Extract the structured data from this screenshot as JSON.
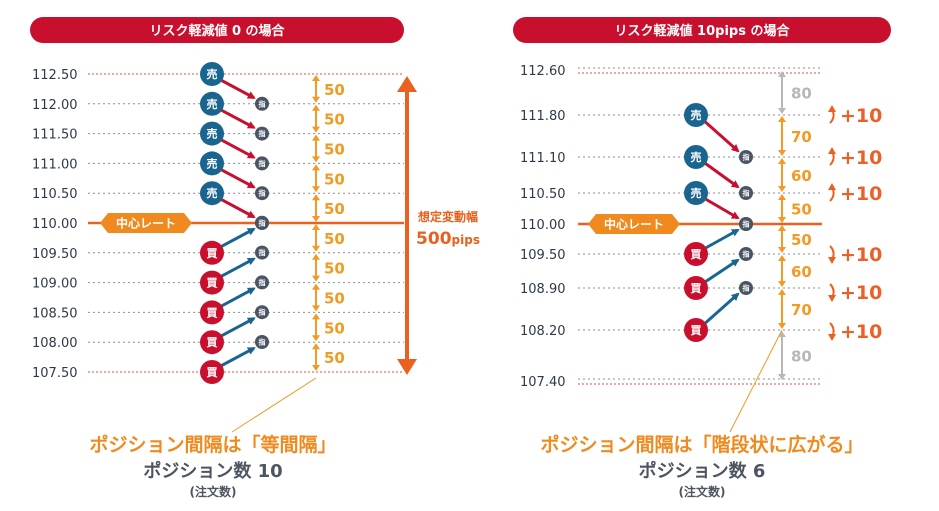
{
  "colors": {
    "banner": "#c8102e",
    "sell": "#1a6590",
    "buy": "#c8102e",
    "limit": "#4a5563",
    "step": "#f29a24",
    "step_gray": "#b7b7b7",
    "center": "#f08a1e",
    "range": "#e9601f",
    "sell_arrow": "#c8102e",
    "buy_arrow": "#1a6590"
  },
  "left": {
    "title": "リスク軽減値 0 の場合",
    "prices": [
      "112.50",
      "112.00",
      "111.50",
      "111.00",
      "110.50",
      "110.00",
      "109.50",
      "109.00",
      "108.50",
      "108.00",
      "107.50"
    ],
    "center_label": "中心レート",
    "sell_label": "売",
    "buy_label": "買",
    "limit_label": "指",
    "steps": [
      "50",
      "50",
      "50",
      "50",
      "50",
      "50",
      "50",
      "50",
      "50",
      "50"
    ],
    "range_label": "想定変動幅",
    "range_value": "500",
    "range_unit": "pips",
    "caption": "ポジション間隔は「等間隔」",
    "count": "ポジション数 10",
    "count_note": "(注文数)"
  },
  "right": {
    "title": "リスク軽減値 10pips の場合",
    "prices": [
      "112.60",
      "111.80",
      "111.10",
      "110.50",
      "110.00",
      "109.50",
      "108.90",
      "108.20",
      "107.40"
    ],
    "center_label": "中心レート",
    "sell_label": "売",
    "buy_label": "買",
    "limit_label": "指",
    "steps": [
      "80",
      "70",
      "60",
      "50",
      "50",
      "60",
      "70",
      "80"
    ],
    "increments": [
      "+10",
      "+10",
      "+10",
      "+10",
      "+10",
      "+10"
    ],
    "caption": "ポジション間隔は「階段状に広がる」",
    "count": "ポジション数 6",
    "count_note": "(注文数)"
  }
}
